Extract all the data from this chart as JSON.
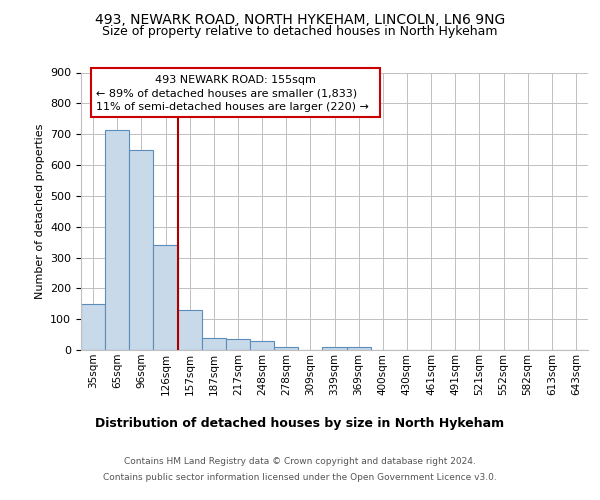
{
  "title1": "493, NEWARK ROAD, NORTH HYKEHAM, LINCOLN, LN6 9NG",
  "title2": "Size of property relative to detached houses in North Hykeham",
  "xlabel": "Distribution of detached houses by size in North Hykeham",
  "ylabel": "Number of detached properties",
  "footer1": "Contains HM Land Registry data © Crown copyright and database right 2024.",
  "footer2": "Contains public sector information licensed under the Open Government Licence v3.0.",
  "annotation_line1": "493 NEWARK ROAD: 155sqm",
  "annotation_line2": "← 89% of detached houses are smaller (1,833)",
  "annotation_line3": "11% of semi-detached houses are larger (220) →",
  "bar_labels": [
    "35sqm",
    "65sqm",
    "96sqm",
    "126sqm",
    "157sqm",
    "187sqm",
    "217sqm",
    "248sqm",
    "278sqm",
    "309sqm",
    "339sqm",
    "369sqm",
    "400sqm",
    "430sqm",
    "461sqm",
    "491sqm",
    "521sqm",
    "552sqm",
    "582sqm",
    "613sqm",
    "643sqm"
  ],
  "bar_values": [
    150,
    715,
    650,
    340,
    130,
    40,
    35,
    30,
    10,
    0,
    10,
    10,
    0,
    0,
    0,
    0,
    0,
    0,
    0,
    0,
    0
  ],
  "bar_color": "#c8d9ea",
  "bar_edge_color": "#5b8db8",
  "red_line_x": 3.5,
  "red_line_color": "#aa0000",
  "annotation_box_color": "#ffffff",
  "annotation_box_edge": "#cc0000",
  "background_color": "#ffffff",
  "grid_color": "#c0c0c0",
  "ylim": [
    0,
    900
  ],
  "yticks": [
    0,
    100,
    200,
    300,
    400,
    500,
    600,
    700,
    800,
    900
  ]
}
